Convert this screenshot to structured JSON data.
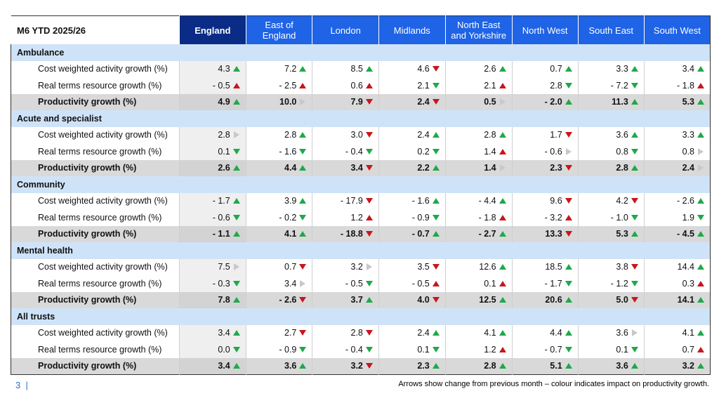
{
  "header": {
    "title": "M6 YTD 2025/26",
    "columns": [
      "England",
      "East of England",
      "London",
      "Midlands",
      "North East and Yorkshire",
      "North West",
      "South East",
      "South West"
    ]
  },
  "arrow_colors": {
    "green": "#1fa84a",
    "red": "#c8161d",
    "grey": "#c8c8c8"
  },
  "sections": [
    {
      "name": "Ambulance",
      "rows": [
        {
          "label": "Cost weighted activity growth (%)",
          "values": [
            "4.3",
            "7.2",
            "8.5",
            "4.6",
            "2.6",
            "0.7",
            "3.3",
            "3.4"
          ],
          "arrows": [
            "up green",
            "up green",
            "up green",
            "down red",
            "up green",
            "up green",
            "up green",
            "up green"
          ]
        },
        {
          "label": "Real terms resource growth (%)",
          "values": [
            "- 0.5",
            "- 2.5",
            "0.6",
            "2.1",
            "2.1",
            "2.8",
            "- 7.2",
            "- 1.8"
          ],
          "arrows": [
            "up red",
            "up red",
            "up red",
            "down green",
            "up red",
            "down green",
            "down green",
            "up red"
          ]
        },
        {
          "label": "Productivity growth (%)",
          "total": true,
          "values": [
            "4.9",
            "10.0",
            "7.9",
            "2.4",
            "0.5",
            "- 2.0",
            "11.3",
            "5.3"
          ],
          "arrows": [
            "up green",
            "flat grey",
            "down red",
            "down red",
            "flat grey",
            "up green",
            "up green",
            "up green"
          ]
        }
      ]
    },
    {
      "name": "Acute and specialist",
      "rows": [
        {
          "label": "Cost weighted activity growth (%)",
          "values": [
            "2.8",
            "2.8",
            "3.0",
            "2.4",
            "2.8",
            "1.7",
            "3.6",
            "3.3"
          ],
          "arrows": [
            "flat grey",
            "up green",
            "down red",
            "up green",
            "up green",
            "down red",
            "up green",
            "up green"
          ]
        },
        {
          "label": "Real terms resource growth (%)",
          "values": [
            "0.1",
            "- 1.6",
            "- 0.4",
            "0.2",
            "1.4",
            "- 0.6",
            "0.8",
            "0.8"
          ],
          "arrows": [
            "down green",
            "down green",
            "down green",
            "down green",
            "up red",
            "flat grey",
            "down green",
            "flat grey"
          ]
        },
        {
          "label": "Productivity growth (%)",
          "total": true,
          "values": [
            "2.6",
            "4.4",
            "3.4",
            "2.2",
            "1.4",
            "2.3",
            "2.8",
            "2.4"
          ],
          "arrows": [
            "up green",
            "up green",
            "down red",
            "up green",
            "flat grey",
            "down red",
            "up green",
            "flat grey"
          ]
        }
      ]
    },
    {
      "name": "Community",
      "rows": [
        {
          "label": "Cost weighted activity growth (%)",
          "values": [
            "- 1.7",
            "3.9",
            "- 17.9",
            "- 1.6",
            "- 4.4",
            "9.6",
            "4.2",
            "- 2.6"
          ],
          "arrows": [
            "up green",
            "up green",
            "down red",
            "up green",
            "up green",
            "down red",
            "down red",
            "up green"
          ]
        },
        {
          "label": "Real terms resource growth (%)",
          "values": [
            "- 0.6",
            "- 0.2",
            "1.2",
            "- 0.9",
            "- 1.8",
            "- 3.2",
            "- 1.0",
            "1.9"
          ],
          "arrows": [
            "down green",
            "down green",
            "up red",
            "down green",
            "up red",
            "up red",
            "down green",
            "down green"
          ]
        },
        {
          "label": "Productivity growth (%)",
          "total": true,
          "values": [
            "- 1.1",
            "4.1",
            "- 18.8",
            "- 0.7",
            "- 2.7",
            "13.3",
            "5.3",
            "- 4.5"
          ],
          "arrows": [
            "up green",
            "up green",
            "down red",
            "up green",
            "up green",
            "down red",
            "up green",
            "up green"
          ]
        }
      ]
    },
    {
      "name": "Mental health",
      "rows": [
        {
          "label": "Cost weighted activity growth (%)",
          "values": [
            "7.5",
            "0.7",
            "3.2",
            "3.5",
            "12.6",
            "18.5",
            "3.8",
            "14.4"
          ],
          "arrows": [
            "flat grey",
            "down red",
            "flat grey",
            "down red",
            "up green",
            "up green",
            "down red",
            "up green"
          ]
        },
        {
          "label": "Real terms resource growth (%)",
          "values": [
            "- 0.3",
            "3.4",
            "- 0.5",
            "- 0.5",
            "0.1",
            "- 1.7",
            "- 1.2",
            "0.3"
          ],
          "arrows": [
            "down green",
            "flat grey",
            "down green",
            "up red",
            "up red",
            "down green",
            "down green",
            "up red"
          ]
        },
        {
          "label": "Productivity growth (%)",
          "total": true,
          "values": [
            "7.8",
            "- 2.6",
            "3.7",
            "4.0",
            "12.5",
            "20.6",
            "5.0",
            "14.1"
          ],
          "arrows": [
            "up green",
            "down red",
            "up green",
            "down red",
            "up green",
            "up green",
            "down red",
            "up green"
          ]
        }
      ]
    },
    {
      "name": "All trusts",
      "rows": [
        {
          "label": "Cost weighted activity growth (%)",
          "values": [
            "3.4",
            "2.7",
            "2.8",
            "2.4",
            "4.1",
            "4.4",
            "3.6",
            "4.1"
          ],
          "arrows": [
            "up green",
            "down red",
            "down red",
            "up green",
            "up green",
            "up green",
            "flat grey",
            "up green"
          ]
        },
        {
          "label": "Real terms resource growth (%)",
          "values": [
            "0.0",
            "- 0.9",
            "- 0.4",
            "0.1",
            "1.2",
            "- 0.7",
            "0.1",
            "0.7"
          ],
          "arrows": [
            "down green",
            "down green",
            "down green",
            "down green",
            "up red",
            "down green",
            "down green",
            "up red"
          ]
        },
        {
          "label": "Productivity growth (%)",
          "total": true,
          "values": [
            "3.4",
            "3.6",
            "3.2",
            "2.3",
            "2.8",
            "5.1",
            "3.6",
            "3.2"
          ],
          "arrows": [
            "up green",
            "up green",
            "down red",
            "up green",
            "up green",
            "up green",
            "up green",
            "up green"
          ]
        }
      ]
    }
  ],
  "footer": {
    "page": "3",
    "note": "Arrows show change from previous month – colour indicates impact on productivity growth."
  }
}
